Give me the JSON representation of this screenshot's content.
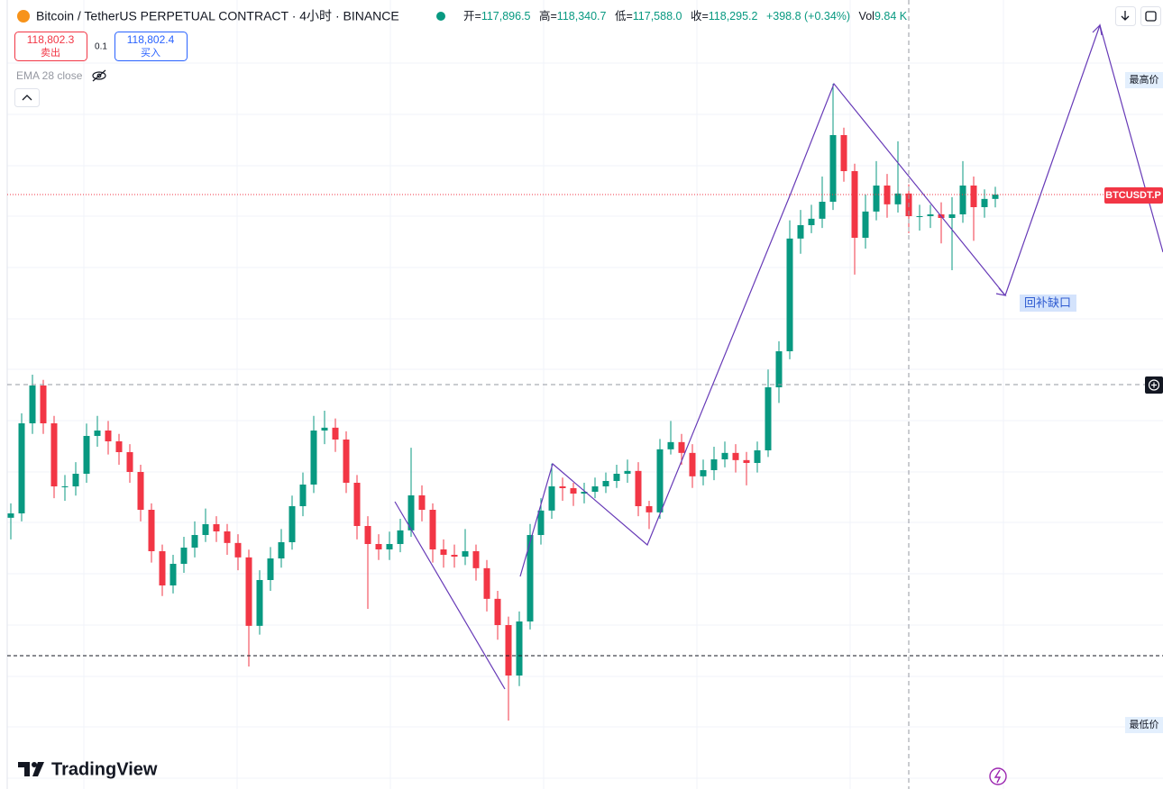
{
  "header": {
    "title": "Bitcoin / TetherUS PERPETUAL CONTRACT · 4小时 · BINANCE",
    "ohlc": [
      {
        "label": "开=",
        "value": "117,896.5"
      },
      {
        "label": "高=",
        "value": "118,340.7"
      },
      {
        "label": "低=",
        "value": "117,588.0"
      },
      {
        "label": "收=",
        "value": "118,295.2"
      }
    ],
    "change": "+398.8 (+0.34%)",
    "volume_label": "Vol",
    "volume": "9.84 K"
  },
  "trade": {
    "sell_price": "118,802.3",
    "sell_label": "卖出",
    "spread": "0.1",
    "buy_price": "118,802.4",
    "buy_label": "买入"
  },
  "indicator": "EMA 28 close",
  "labels": {
    "high": "最高价",
    "low": "最低价",
    "symbol": "BTCUSDT.P",
    "annotation": "回补缺口",
    "brand": "TradingView"
  },
  "chart_data": {
    "type": "candlestick",
    "up_color": "#089981",
    "down_color": "#f23645",
    "ylim": [
      95200,
      125860
    ],
    "candles": [
      [
        105740,
        106300,
        104900,
        105910
      ],
      [
        105910,
        109800,
        105600,
        109410
      ],
      [
        109410,
        111300,
        109000,
        110880
      ],
      [
        110880,
        111100,
        109000,
        109410
      ],
      [
        109410,
        109700,
        106500,
        106960
      ],
      [
        106960,
        107400,
        106400,
        106960
      ],
      [
        106960,
        107900,
        106600,
        107450
      ],
      [
        107450,
        109400,
        107100,
        108920
      ],
      [
        108920,
        109700,
        108500,
        109130
      ],
      [
        109130,
        109500,
        108200,
        108710
      ],
      [
        108710,
        109000,
        107800,
        108290
      ],
      [
        108290,
        108600,
        107100,
        107520
      ],
      [
        107520,
        107800,
        105600,
        106050
      ],
      [
        106050,
        106300,
        104000,
        104440
      ],
      [
        104440,
        104700,
        102700,
        103110
      ],
      [
        103110,
        104300,
        102800,
        103950
      ],
      [
        103950,
        105000,
        103600,
        104580
      ],
      [
        104580,
        105600,
        104200,
        105070
      ],
      [
        105070,
        106100,
        104800,
        105490
      ],
      [
        105490,
        105800,
        104800,
        105210
      ],
      [
        105210,
        105500,
        104300,
        104760
      ],
      [
        104760,
        105100,
        103700,
        104200
      ],
      [
        104200,
        104500,
        99960,
        101540
      ],
      [
        101540,
        103700,
        101200,
        103320
      ],
      [
        103320,
        104600,
        102900,
        104160
      ],
      [
        104160,
        105300,
        103800,
        104790
      ],
      [
        104790,
        106600,
        104500,
        106190
      ],
      [
        106190,
        107500,
        105800,
        107030
      ],
      [
        107030,
        109700,
        106700,
        109130
      ],
      [
        109130,
        109900,
        108600,
        109240
      ],
      [
        109240,
        109600,
        108300,
        108780
      ],
      [
        108780,
        109100,
        106700,
        107100
      ],
      [
        107100,
        107400,
        104900,
        105420
      ],
      [
        105420,
        105800,
        102200,
        104720
      ],
      [
        104720,
        105100,
        104100,
        104510
      ],
      [
        104510,
        105200,
        104100,
        104720
      ],
      [
        104720,
        105700,
        104400,
        105250
      ],
      [
        105250,
        108460,
        105000,
        106610
      ],
      [
        106610,
        107000,
        105600,
        106050
      ],
      [
        106050,
        106300,
        104000,
        104510
      ],
      [
        104510,
        104900,
        103800,
        104300
      ],
      [
        104300,
        104700,
        103800,
        104230
      ],
      [
        104230,
        105300,
        103900,
        104440
      ],
      [
        104440,
        104700,
        103300,
        103780
      ],
      [
        103780,
        104100,
        102100,
        102590
      ],
      [
        102590,
        102900,
        101000,
        101570
      ],
      [
        101570,
        101900,
        97860,
        99610
      ],
      [
        99610,
        102100,
        99200,
        101710
      ],
      [
        101710,
        105500,
        101400,
        105070
      ],
      [
        105070,
        106500,
        104700,
        106020
      ],
      [
        106020,
        107840,
        105700,
        106960
      ],
      [
        106960,
        107300,
        106400,
        106890
      ],
      [
        106890,
        107100,
        106200,
        106680
      ],
      [
        106680,
        107100,
        106300,
        106750
      ],
      [
        106750,
        107300,
        106500,
        106960
      ],
      [
        106960,
        107500,
        106700,
        107170
      ],
      [
        107170,
        107800,
        106900,
        107450
      ],
      [
        107450,
        108000,
        107100,
        107560
      ],
      [
        107560,
        107900,
        105800,
        106190
      ],
      [
        106190,
        106400,
        105300,
        105950
      ],
      [
        105950,
        108800,
        105700,
        108400
      ],
      [
        108400,
        109500,
        108200,
        108680
      ],
      [
        108680,
        109000,
        107800,
        108260
      ],
      [
        108260,
        108600,
        106900,
        107350
      ],
      [
        107350,
        108000,
        107000,
        107590
      ],
      [
        107590,
        108500,
        107200,
        108010
      ],
      [
        108010,
        108700,
        107700,
        108260
      ],
      [
        108260,
        108600,
        107500,
        107980
      ],
      [
        107980,
        108300,
        107000,
        107870
      ],
      [
        107870,
        108700,
        107500,
        108360
      ],
      [
        108360,
        111500,
        108100,
        110810
      ],
      [
        110810,
        112600,
        110200,
        112210
      ],
      [
        112210,
        117300,
        111900,
        116590
      ],
      [
        116590,
        117700,
        116000,
        117110
      ],
      [
        117110,
        117900,
        116800,
        117360
      ],
      [
        117360,
        119000,
        117000,
        118020
      ],
      [
        118020,
        122600,
        117700,
        120610
      ],
      [
        120610,
        120900,
        118800,
        119210
      ],
      [
        119210,
        119500,
        115190,
        116620
      ],
      [
        116620,
        118300,
        116200,
        117640
      ],
      [
        117640,
        119600,
        117300,
        118650
      ],
      [
        118650,
        119100,
        117400,
        117920
      ],
      [
        117920,
        120370,
        117600,
        118340
      ],
      [
        118340,
        118700,
        116800,
        117460
      ],
      [
        117460,
        117900,
        116900,
        117460
      ],
      [
        117460,
        117900,
        117000,
        117530
      ],
      [
        117530,
        118000,
        116400,
        117390
      ],
      [
        117390,
        118200,
        115360,
        117530
      ],
      [
        117530,
        119600,
        117200,
        118650
      ],
      [
        118650,
        119000,
        116500,
        117810
      ],
      [
        117810,
        118500,
        117400,
        118130
      ],
      [
        118130,
        118600,
        117800,
        118300
      ]
    ]
  }
}
